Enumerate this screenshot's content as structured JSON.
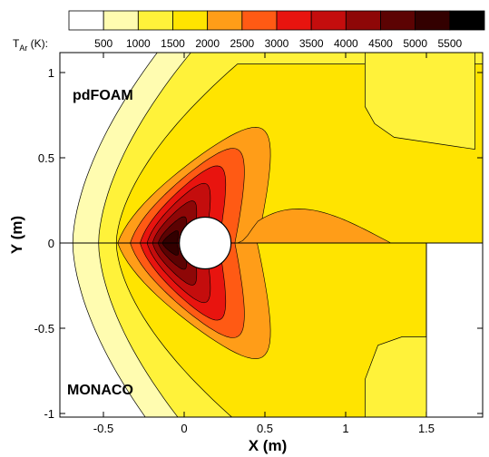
{
  "chart_data": {
    "type": "contour",
    "xlabel": "X (m)",
    "ylabel": "Y (m)",
    "xlim": [
      -0.75,
      1.8
    ],
    "ylim": [
      -1.05,
      1.08
    ],
    "x_ticks": [
      -0.5,
      0,
      0.5,
      1,
      1.5
    ],
    "x_tick_labels": [
      "-0.5",
      "0",
      "0.5",
      "1",
      "1.5"
    ],
    "y_ticks": [
      -1,
      -0.5,
      0,
      0.5,
      1
    ],
    "y_tick_labels": [
      "-1",
      "-0.5",
      "0",
      "0.5",
      "1"
    ],
    "colorbar": {
      "title_main": "T",
      "title_sub": "Ar",
      "title_tail": " (K):",
      "levels": [
        500,
        1000,
        1500,
        2000,
        2500,
        3000,
        3500,
        4000,
        4500,
        5000,
        5500
      ],
      "level_labels": [
        "500",
        "1000",
        "1500",
        "2000",
        "2500",
        "3000",
        "3500",
        "4000",
        "4500",
        "5000",
        "5500"
      ],
      "colors": [
        "#ffffff",
        "#fffcb0",
        "#fff23a",
        "#ffe400",
        "#ff9d18",
        "#ff5a14",
        "#e8140f",
        "#c40d0d",
        "#8e0707",
        "#5c0303",
        "#330000",
        "#000000"
      ]
    },
    "cylinder": {
      "center": [
        0.13,
        0
      ],
      "radius": 0.16
    },
    "regions": [
      {
        "name": "pdFOAM",
        "half": "upper"
      },
      {
        "name": "MONACO",
        "half": "lower"
      }
    ]
  }
}
